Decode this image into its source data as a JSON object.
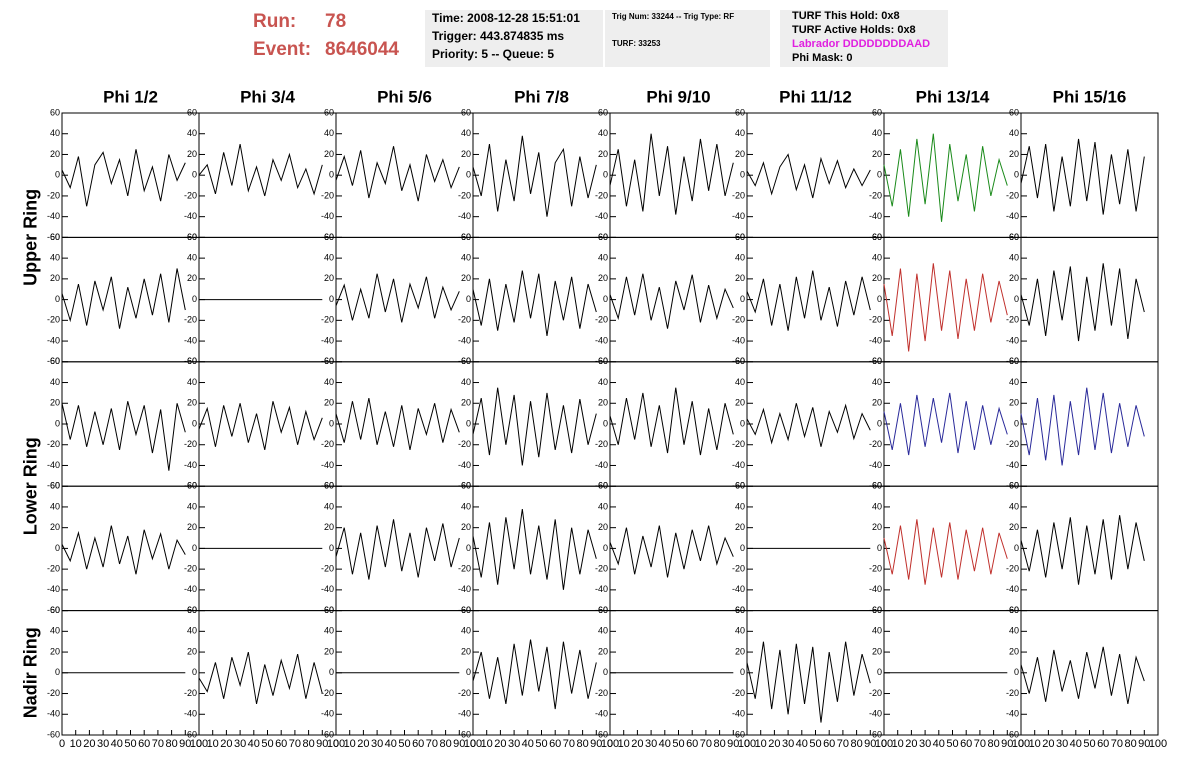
{
  "header": {
    "run_label": "Run:",
    "run": "78",
    "event_label": "Event:",
    "event": "8646044",
    "time": "Time: 2008-12-28 15:51:01",
    "trigger": "Trigger: 443.874835 ms",
    "priority": "Priority: 5 -- Queue: 5",
    "trig_num": "Trig Num: 33244 -- Trig Type: RF",
    "turf": "TURF: 33253",
    "turf_hold": "TURF This Hold: 0x8",
    "turf_active": "TURF Active Holds: 0x8",
    "labrador": "Labrador DDDDDDDDAAD",
    "phi_mask": "Phi Mask: 0"
  },
  "chart_data": {
    "type": "line",
    "columns": [
      "Phi 1/2",
      "Phi 3/4",
      "Phi 5/6",
      "Phi 7/8",
      "Phi 9/10",
      "Phi 11/12",
      "Phi 13/14",
      "Phi 15/16"
    ],
    "ring_labels": [
      "Upper Ring",
      "Lower Ring",
      "Nadir Ring"
    ],
    "xlim": [
      0,
      100
    ],
    "xticks": [
      0,
      10,
      20,
      30,
      40,
      50,
      60,
      70,
      80,
      90,
      100
    ],
    "ylim": [
      -60,
      60
    ],
    "yticks": [
      -60,
      -40,
      -20,
      0,
      20,
      40,
      60
    ],
    "x": [
      0,
      6,
      12,
      18,
      24,
      30,
      36,
      42,
      48,
      54,
      60,
      66,
      72,
      78,
      84,
      90
    ],
    "series": [
      {
        "color": "#000000",
        "values": [
          5,
          -12,
          18,
          -30,
          10,
          22,
          -8,
          15,
          -20,
          25,
          -15,
          8,
          -25,
          20,
          -5,
          12
        ]
      },
      {
        "color": "#000000",
        "values": [
          0,
          10,
          -18,
          22,
          -10,
          30,
          -15,
          8,
          -20,
          15,
          -5,
          20,
          -12,
          6,
          -18,
          10
        ]
      },
      {
        "color": "#000000",
        "values": [
          -5,
          18,
          -10,
          24,
          -22,
          12,
          -8,
          28,
          -15,
          10,
          -25,
          20,
          -6,
          15,
          -12,
          8
        ]
      },
      {
        "color": "#000000",
        "values": [
          8,
          -20,
          30,
          -35,
          15,
          -25,
          38,
          -18,
          22,
          -40,
          12,
          25,
          -30,
          18,
          -22,
          10
        ]
      },
      {
        "color": "#000000",
        "values": [
          -10,
          25,
          -30,
          15,
          -35,
          40,
          -20,
          28,
          -38,
          18,
          -25,
          35,
          -15,
          30,
          -20,
          12
        ]
      },
      {
        "color": "#000000",
        "values": [
          4,
          -10,
          12,
          -18,
          8,
          20,
          -14,
          10,
          -22,
          16,
          -8,
          14,
          -12,
          6,
          -10,
          5
        ]
      },
      {
        "color": "#1a8a1a",
        "values": [
          10,
          -30,
          25,
          -40,
          35,
          -28,
          40,
          -45,
          30,
          -25,
          20,
          -35,
          28,
          -20,
          15,
          -10
        ]
      },
      {
        "color": "#000000",
        "values": [
          -8,
          28,
          -22,
          30,
          -35,
          18,
          -30,
          35,
          -25,
          32,
          -38,
          20,
          -28,
          25,
          -35,
          18
        ]
      },
      {
        "color": "#000000",
        "values": [
          6,
          -20,
          15,
          -25,
          18,
          -10,
          22,
          -28,
          12,
          -18,
          20,
          -15,
          25,
          -22,
          30,
          -10
        ]
      },
      {
        "color": "#000000",
        "values": [
          0,
          0,
          0,
          0,
          0,
          0,
          0,
          0,
          0,
          0,
          0,
          0,
          0,
          0,
          0,
          0
        ]
      },
      {
        "color": "#000000",
        "values": [
          -6,
          14,
          -20,
          10,
          -18,
          25,
          -12,
          20,
          -22,
          15,
          -8,
          22,
          -18,
          12,
          -10,
          8
        ]
      },
      {
        "color": "#000000",
        "values": [
          10,
          -25,
          20,
          -30,
          15,
          -22,
          28,
          -18,
          25,
          -35,
          18,
          -20,
          22,
          -28,
          15,
          -12
        ]
      },
      {
        "color": "#000000",
        "values": [
          5,
          -18,
          22,
          -15,
          25,
          -20,
          12,
          -28,
          18,
          -10,
          24,
          -22,
          14,
          -18,
          10,
          -8
        ]
      },
      {
        "color": "#000000",
        "values": [
          8,
          -12,
          20,
          -25,
          15,
          -30,
          22,
          -18,
          28,
          -20,
          12,
          -26,
          18,
          -15,
          22,
          -10
        ]
      },
      {
        "color": "#c0302c",
        "values": [
          15,
          -35,
          30,
          -50,
          25,
          -40,
          35,
          -30,
          28,
          -38,
          20,
          -30,
          25,
          -22,
          18,
          -15
        ]
      },
      {
        "color": "#000000",
        "values": [
          5,
          -25,
          20,
          -35,
          28,
          -20,
          32,
          -40,
          22,
          -30,
          35,
          -25,
          30,
          -38,
          20,
          -12
        ]
      },
      {
        "color": "#000000",
        "values": [
          20,
          -15,
          18,
          -22,
          12,
          -20,
          15,
          -25,
          22,
          -10,
          18,
          -28,
          14,
          -45,
          20,
          -8
        ]
      },
      {
        "color": "#000000",
        "values": [
          -5,
          15,
          -22,
          18,
          -12,
          20,
          -18,
          10,
          -25,
          22,
          -8,
          16,
          -20,
          12,
          -15,
          6
        ]
      },
      {
        "color": "#000000",
        "values": [
          10,
          -18,
          22,
          -15,
          25,
          -20,
          12,
          -22,
          18,
          -25,
          15,
          -10,
          20,
          -18,
          14,
          -8
        ]
      },
      {
        "color": "#000000",
        "values": [
          -10,
          25,
          -30,
          35,
          -20,
          28,
          -40,
          22,
          -32,
          30,
          -25,
          18,
          -28,
          24,
          -20,
          10
        ]
      },
      {
        "color": "#000000",
        "values": [
          8,
          -20,
          25,
          -15,
          30,
          -22,
          18,
          -28,
          35,
          -20,
          22,
          -30,
          15,
          -25,
          20,
          -10
        ]
      },
      {
        "color": "#000000",
        "values": [
          5,
          -10,
          14,
          -18,
          10,
          -15,
          20,
          -12,
          16,
          -22,
          12,
          -8,
          18,
          -14,
          10,
          -6
        ]
      },
      {
        "color": "#2a2a9a",
        "values": [
          12,
          -25,
          20,
          -30,
          28,
          -22,
          25,
          -18,
          30,
          -28,
          22,
          -25,
          18,
          -20,
          15,
          -10
        ]
      },
      {
        "color": "#2a2a9a",
        "values": [
          10,
          -30,
          25,
          -35,
          28,
          -40,
          22,
          -30,
          35,
          -25,
          30,
          -28,
          20,
          -22,
          18,
          -12
        ]
      },
      {
        "color": "#000000",
        "values": [
          4,
          -12,
          15,
          -20,
          10,
          -18,
          22,
          -15,
          12,
          -25,
          18,
          -10,
          14,
          -20,
          8,
          -6
        ]
      },
      {
        "color": "#000000",
        "values": [
          0,
          0,
          0,
          0,
          0,
          0,
          0,
          0,
          0,
          0,
          0,
          0,
          0,
          0,
          0,
          0
        ]
      },
      {
        "color": "#000000",
        "values": [
          -8,
          20,
          -25,
          15,
          -30,
          22,
          -18,
          28,
          -22,
          15,
          -28,
          20,
          -12,
          24,
          -18,
          10
        ]
      },
      {
        "color": "#000000",
        "values": [
          12,
          -28,
          25,
          -35,
          30,
          -20,
          38,
          -25,
          22,
          -30,
          28,
          -40,
          20,
          -25,
          18,
          -10
        ]
      },
      {
        "color": "#000000",
        "values": [
          6,
          -15,
          20,
          -25,
          12,
          -18,
          22,
          -28,
          15,
          -20,
          18,
          -12,
          22,
          -15,
          10,
          -8
        ]
      },
      {
        "color": "#000000",
        "values": [
          0,
          0,
          0,
          0,
          0,
          0,
          0,
          0,
          0,
          0,
          0,
          0,
          0,
          0,
          0,
          0
        ]
      },
      {
        "color": "#c0302c",
        "values": [
          10,
          -25,
          22,
          -30,
          28,
          -35,
          20,
          -28,
          25,
          -30,
          18,
          -22,
          20,
          -25,
          15,
          -10
        ]
      },
      {
        "color": "#000000",
        "values": [
          8,
          -22,
          18,
          -28,
          25,
          -20,
          30,
          -35,
          22,
          -25,
          28,
          -30,
          32,
          -20,
          25,
          -12
        ]
      },
      {
        "color": "#000000",
        "values": [
          0,
          0,
          0,
          0,
          0,
          0,
          0,
          0,
          0,
          0,
          0,
          0,
          0,
          0,
          0,
          0
        ]
      },
      {
        "color": "#000000",
        "values": [
          -5,
          -18,
          10,
          -25,
          15,
          -12,
          20,
          -30,
          8,
          -22,
          12,
          -15,
          18,
          -25,
          10,
          -20
        ]
      },
      {
        "color": "#000000",
        "values": [
          0,
          0,
          0,
          0,
          0,
          0,
          0,
          0,
          0,
          0,
          0,
          0,
          0,
          0,
          0,
          0
        ]
      },
      {
        "color": "#000000",
        "values": [
          -8,
          20,
          -25,
          15,
          -30,
          28,
          -22,
          32,
          -18,
          25,
          -35,
          30,
          -20,
          22,
          -25,
          10
        ]
      },
      {
        "color": "#000000",
        "values": [
          0,
          0,
          0,
          0,
          0,
          0,
          0,
          0,
          0,
          0,
          0,
          0,
          0,
          0,
          0,
          0
        ]
      },
      {
        "color": "#000000",
        "values": [
          10,
          -25,
          30,
          -35,
          22,
          -40,
          28,
          -30,
          25,
          -48,
          20,
          -28,
          30,
          -22,
          18,
          -10
        ]
      },
      {
        "color": "#000000",
        "values": [
          0,
          0,
          0,
          0,
          0,
          0,
          0,
          0,
          0,
          0,
          0,
          0,
          0,
          0,
          0,
          0
        ]
      },
      {
        "color": "#000000",
        "values": [
          8,
          -20,
          15,
          -28,
          22,
          -18,
          12,
          -25,
          20,
          -15,
          25,
          -22,
          18,
          -30,
          15,
          -8
        ]
      }
    ]
  }
}
